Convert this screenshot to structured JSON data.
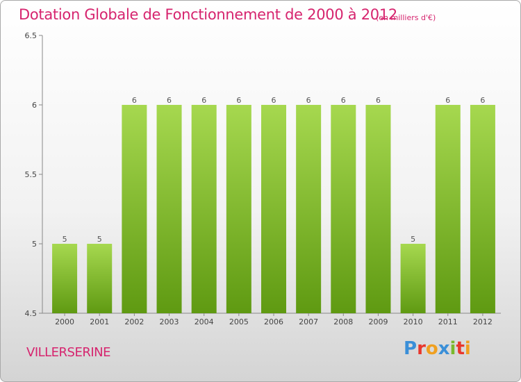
{
  "header": {
    "title": "Dotation Globale de Fonctionnement de 2000 à 2012",
    "subtitle": "(en milliers d'€)"
  },
  "footer": {
    "commune": "VILLERSERINE",
    "logo_text": "Proxiti"
  },
  "colors": {
    "title": "#d6246e",
    "bar_light": "#a6d84f",
    "bar_dark": "#5f9a12",
    "logo_letters": [
      "#3a8fd8",
      "#e8372c",
      "#f0a020",
      "#3a8fd8",
      "#7ab82c",
      "#e8372c",
      "#f0a020"
    ]
  },
  "chart_data": {
    "type": "bar",
    "categories": [
      "2000",
      "2001",
      "2002",
      "2003",
      "2004",
      "2005",
      "2006",
      "2007",
      "2008",
      "2009",
      "2010",
      "2011",
      "2012"
    ],
    "values": [
      5,
      5,
      6,
      6,
      6,
      6,
      6,
      6,
      6,
      6,
      5,
      6,
      6
    ],
    "data_labels": [
      "5",
      "5",
      "6",
      "6",
      "6",
      "6",
      "6",
      "6",
      "6",
      "6",
      "5",
      "6",
      "6"
    ],
    "ylim": [
      4.5,
      6.5
    ],
    "yticks": [
      4.5,
      5,
      5.5,
      6,
      6.5
    ],
    "ytick_labels": [
      "4.5",
      "5",
      "5.5",
      "6",
      "6.5"
    ],
    "grid": false,
    "legend": "none"
  }
}
